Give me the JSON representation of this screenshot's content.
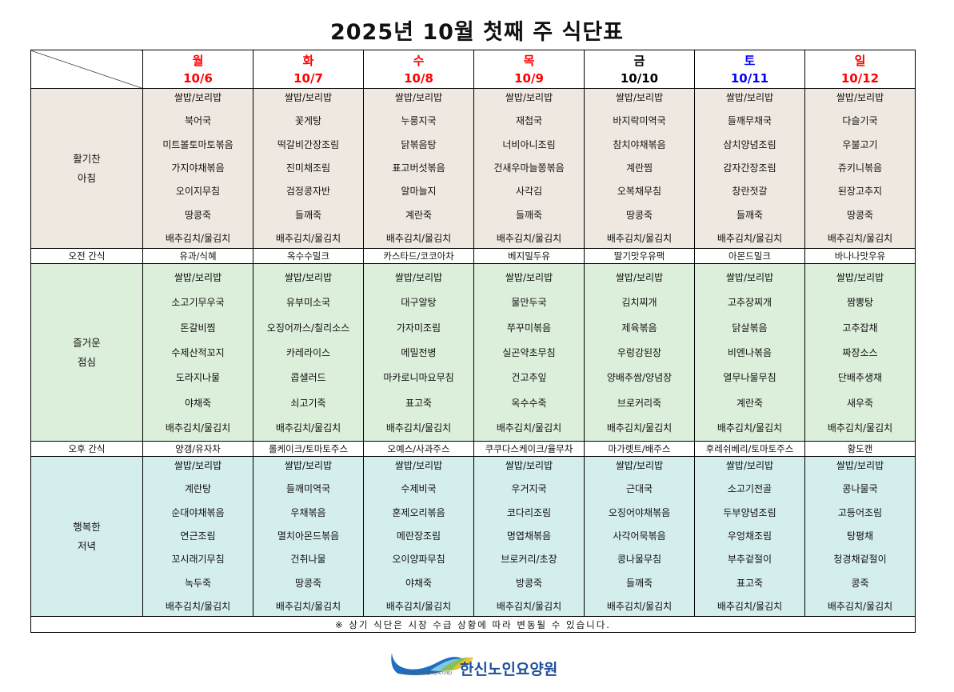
{
  "title": "2025년 10월 첫째 주 식단표",
  "colors": {
    "red": "#ff0000",
    "blue": "#0000ff",
    "black": "#000000",
    "breakfast_bg": "#efe8e0",
    "lunch_bg": "#dcefda",
    "dinner_bg": "#d4eded"
  },
  "days": [
    {
      "day": "월",
      "date": "10/6",
      "color": "#ff0000"
    },
    {
      "day": "화",
      "date": "10/7",
      "color": "#ff0000"
    },
    {
      "day": "수",
      "date": "10/8",
      "color": "#ff0000"
    },
    {
      "day": "목",
      "date": "10/9",
      "color": "#ff0000"
    },
    {
      "day": "금",
      "date": "10/10",
      "color": "#000000"
    },
    {
      "day": "토",
      "date": "10/11",
      "color": "#0000ff"
    },
    {
      "day": "일",
      "date": "10/12",
      "color": "#ff0000"
    }
  ],
  "rows": {
    "breakfast": {
      "label1": "활기찬",
      "label2": "아침"
    },
    "am_snack": {
      "label": "오전 간식"
    },
    "lunch": {
      "label1": "즐거운",
      "label2": "점심"
    },
    "pm_snack": {
      "label": "오후 간식"
    },
    "dinner": {
      "label1": "행복한",
      "label2": "저녁"
    }
  },
  "breakfast": [
    [
      "쌀밥/보리밥",
      "북어국",
      "미트볼토마토볶음",
      "가지야채볶음",
      "오이지무침",
      "땅콩죽",
      "배추김치/물김치"
    ],
    [
      "쌀밥/보리밥",
      "꽃게탕",
      "떡갈비간장조림",
      "진미채조림",
      "검정콩자반",
      "들깨죽",
      "배추김치/물김치"
    ],
    [
      "쌀밥/보리밥",
      "누룽지국",
      "닭볶음탕",
      "표고버섯볶음",
      "알마늘지",
      "계란죽",
      "배추김치/물김치"
    ],
    [
      "쌀밥/보리밥",
      "재첩국",
      "너비아니조림",
      "건새우마늘쫑볶음",
      "사각김",
      "들깨죽",
      "배추김치/물김치"
    ],
    [
      "쌀밥/보리밥",
      "바지락미역국",
      "참치야채볶음",
      "계란찜",
      "오복채무침",
      "땅콩죽",
      "배추김치/물김치"
    ],
    [
      "쌀밥/보리밥",
      "들깨무채국",
      "삼치양념조림",
      "감자간장조림",
      "창란젓갈",
      "들깨죽",
      "배추김치/물김치"
    ],
    [
      "쌀밥/보리밥",
      "다슬기국",
      "우불고기",
      "쥬키니볶음",
      "된장고추지",
      "땅콩죽",
      "배추김치/물김치"
    ]
  ],
  "am_snack": [
    "유과/식혜",
    "옥수수밀크",
    "카스타드/코코아차",
    "베지밀두유",
    "딸기맛우유팩",
    "아몬드밀크",
    "바나나맛우유"
  ],
  "lunch": [
    [
      "쌀밥/보리밥",
      "소고기무우국",
      "돈갈비찜",
      "수제산적꼬지",
      "도라지나물",
      "야채죽",
      "배추김치/물김치"
    ],
    [
      "쌀밥/보리밥",
      "유부미소국",
      "오징어까스/칠리소스",
      "카레라이스",
      "콥샐러드",
      "쇠고기죽",
      "배추김치/물김치"
    ],
    [
      "쌀밥/보리밥",
      "대구알탕",
      "가자미조림",
      "메밀전병",
      "마카로니마요무침",
      "표고죽",
      "배추김치/물김치"
    ],
    [
      "쌀밥/보리밥",
      "물만두국",
      "쭈꾸미볶음",
      "실곤약초무침",
      "건고추잎",
      "옥수수죽",
      "배추김치/물김치"
    ],
    [
      "쌀밥/보리밥",
      "김치찌개",
      "제육볶음",
      "우렁강된장",
      "양배추쌈/양념장",
      "브로커리죽",
      "배추김치/물김치"
    ],
    [
      "쌀밥/보리밥",
      "고추장찌개",
      "닭살볶음",
      "비엔나볶음",
      "열무나물무침",
      "계란죽",
      "배추김치/물김치"
    ],
    [
      "쌀밥/보리밥",
      "짬뽕탕",
      "고추잡채",
      "짜장소스",
      "단배추생채",
      "새우죽",
      "배추김치/물김치"
    ]
  ],
  "pm_snack": [
    "양갱/유자차",
    "롤케이크/토마토주스",
    "오예스/사과주스",
    "쿠쿠다스케이크/율무차",
    "마가렛트/배주스",
    "후레쉬베리/토마토주스",
    "황도캔"
  ],
  "dinner": [
    [
      "쌀밥/보리밥",
      "계란탕",
      "순대야채볶음",
      "연근조림",
      "꼬시래기무침",
      "녹두죽",
      "배추김치/물김치"
    ],
    [
      "쌀밥/보리밥",
      "들깨미역국",
      "우채볶음",
      "멸치아몬드볶음",
      "건취나물",
      "땅콩죽",
      "배추김치/물김치"
    ],
    [
      "쌀밥/보리밥",
      "수제비국",
      "훈제오리볶음",
      "메란장조림",
      "오이양파무침",
      "야채죽",
      "배추김치/물김치"
    ],
    [
      "쌀밥/보리밥",
      "우거지국",
      "코다리조림",
      "명엽채볶음",
      "브로커리/초장",
      "방콩죽",
      "배추김치/물김치"
    ],
    [
      "쌀밥/보리밥",
      "근대국",
      "오징어야채볶음",
      "사각어묵볶음",
      "콩나물무침",
      "들깨죽",
      "배추김치/물김치"
    ],
    [
      "쌀밥/보리밥",
      "소고기전골",
      "두부양념조림",
      "우엉채조림",
      "부추겉절이",
      "표고죽",
      "배추김치/물김치"
    ],
    [
      "쌀밥/보리밥",
      "콩나물국",
      "고등어조림",
      "탕평채",
      "청경채겉절이",
      "콩죽",
      "배추김치/물김치"
    ]
  ],
  "footer_note": "※ 상기 식단은 시장 수급 상황에 따라 변동될 수 있습니다.",
  "logo": {
    "name": "한신노인요양원",
    "sub": "사회복지법인 봉자원복지재단"
  }
}
